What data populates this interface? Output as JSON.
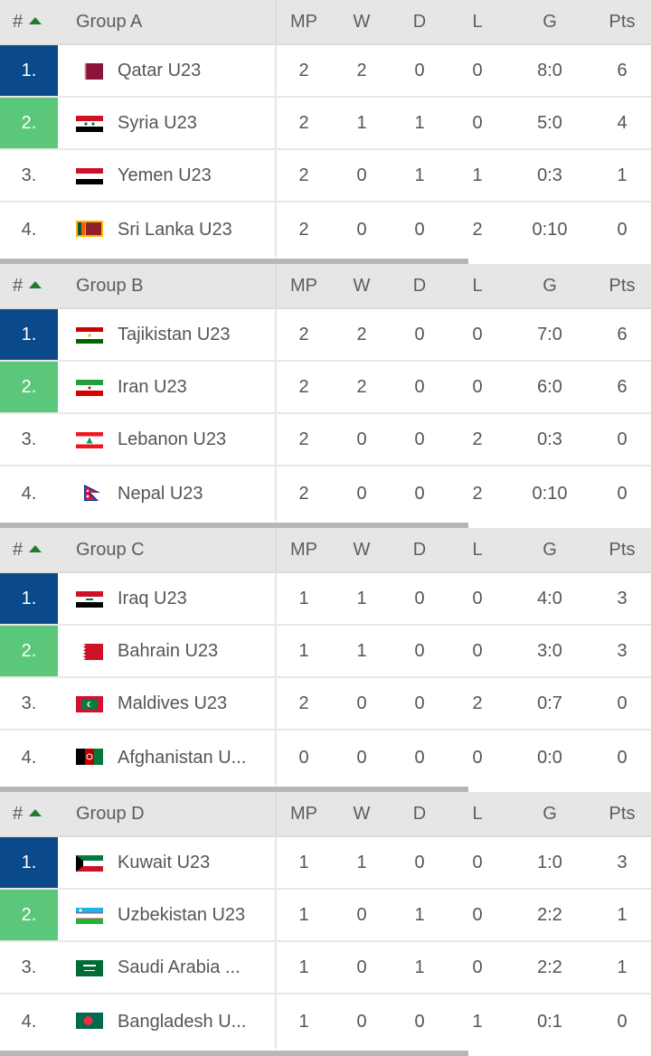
{
  "columns": {
    "hash": "#",
    "mp": "MP",
    "w": "W",
    "d": "D",
    "l": "L",
    "g": "G",
    "pts": "Pts"
  },
  "colors": {
    "rank1": "#0a4a8a",
    "rank2": "#5bc77a",
    "sort_arrow": "#1e7d2e"
  },
  "groups": [
    {
      "name": "Group A",
      "rows": [
        {
          "rank": "1.",
          "team": "Qatar U23",
          "flag": "qatar-flag-icon",
          "mp": "2",
          "w": "2",
          "d": "0",
          "l": "0",
          "g": "8:0",
          "pts": "6"
        },
        {
          "rank": "2.",
          "team": "Syria U23",
          "flag": "syria-flag-icon",
          "mp": "2",
          "w": "1",
          "d": "1",
          "l": "0",
          "g": "5:0",
          "pts": "4"
        },
        {
          "rank": "3.",
          "team": "Yemen U23",
          "flag": "yemen-flag-icon",
          "mp": "2",
          "w": "0",
          "d": "1",
          "l": "1",
          "g": "0:3",
          "pts": "1"
        },
        {
          "rank": "4.",
          "team": "Sri Lanka U23",
          "flag": "sri-lanka-flag-icon",
          "mp": "2",
          "w": "0",
          "d": "0",
          "l": "2",
          "g": "0:10",
          "pts": "0"
        }
      ]
    },
    {
      "name": "Group B",
      "rows": [
        {
          "rank": "1.",
          "team": "Tajikistan U23",
          "flag": "tajikistan-flag-icon",
          "mp": "2",
          "w": "2",
          "d": "0",
          "l": "0",
          "g": "7:0",
          "pts": "6"
        },
        {
          "rank": "2.",
          "team": "Iran U23",
          "flag": "iran-flag-icon",
          "mp": "2",
          "w": "2",
          "d": "0",
          "l": "0",
          "g": "6:0",
          "pts": "6"
        },
        {
          "rank": "3.",
          "team": "Lebanon U23",
          "flag": "lebanon-flag-icon",
          "mp": "2",
          "w": "0",
          "d": "0",
          "l": "2",
          "g": "0:3",
          "pts": "0"
        },
        {
          "rank": "4.",
          "team": "Nepal U23",
          "flag": "nepal-flag-icon",
          "mp": "2",
          "w": "0",
          "d": "0",
          "l": "2",
          "g": "0:10",
          "pts": "0"
        }
      ]
    },
    {
      "name": "Group C",
      "rows": [
        {
          "rank": "1.",
          "team": "Iraq U23",
          "flag": "iraq-flag-icon",
          "mp": "1",
          "w": "1",
          "d": "0",
          "l": "0",
          "g": "4:0",
          "pts": "3"
        },
        {
          "rank": "2.",
          "team": "Bahrain U23",
          "flag": "bahrain-flag-icon",
          "mp": "1",
          "w": "1",
          "d": "0",
          "l": "0",
          "g": "3:0",
          "pts": "3"
        },
        {
          "rank": "3.",
          "team": "Maldives U23",
          "flag": "maldives-flag-icon",
          "mp": "2",
          "w": "0",
          "d": "0",
          "l": "2",
          "g": "0:7",
          "pts": "0"
        },
        {
          "rank": "4.",
          "team": "Afghanistan U...",
          "flag": "afghanistan-flag-icon",
          "mp": "0",
          "w": "0",
          "d": "0",
          "l": "0",
          "g": "0:0",
          "pts": "0"
        }
      ]
    },
    {
      "name": "Group D",
      "rows": [
        {
          "rank": "1.",
          "team": "Kuwait U23",
          "flag": "kuwait-flag-icon",
          "mp": "1",
          "w": "1",
          "d": "0",
          "l": "0",
          "g": "1:0",
          "pts": "3"
        },
        {
          "rank": "2.",
          "team": "Uzbekistan U23",
          "flag": "uzbekistan-flag-icon",
          "mp": "1",
          "w": "0",
          "d": "1",
          "l": "0",
          "g": "2:2",
          "pts": "1"
        },
        {
          "rank": "3.",
          "team": "Saudi Arabia ...",
          "flag": "saudi-arabia-flag-icon",
          "mp": "1",
          "w": "0",
          "d": "1",
          "l": "0",
          "g": "2:2",
          "pts": "1"
        },
        {
          "rank": "4.",
          "team": "Bangladesh U...",
          "flag": "bangladesh-flag-icon",
          "mp": "1",
          "w": "0",
          "d": "0",
          "l": "1",
          "g": "0:1",
          "pts": "0"
        }
      ]
    }
  ]
}
